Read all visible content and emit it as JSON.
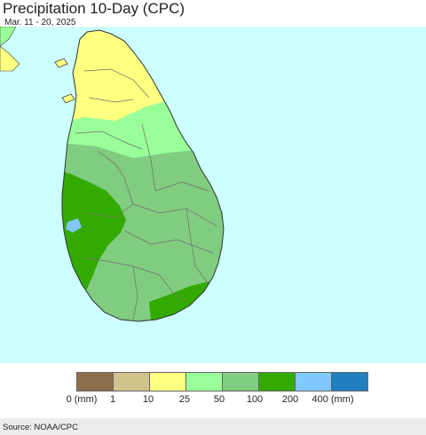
{
  "header": {
    "title": "Precipitation 10-Day (CPC)",
    "subtitle": "Mar. 11 - 20, 2025"
  },
  "map": {
    "region": "Sri Lanka",
    "ocean_color": "#ccffff",
    "land_zones": [
      {
        "name": "north",
        "category": "10-25",
        "color": "#ffff80"
      },
      {
        "name": "north-central",
        "category": "25-50",
        "color": "#99ff99"
      },
      {
        "name": "central-east",
        "category": "50-100",
        "color": "#80cc80"
      },
      {
        "name": "south-west",
        "category": "100-200",
        "color": "#33aa00"
      },
      {
        "name": "west-coast-spot",
        "category": "200-400",
        "color": "#80c8ff"
      },
      {
        "name": "south-coast",
        "category": "100-200",
        "color": "#33aa00"
      }
    ]
  },
  "legend": {
    "colors": [
      "#8b6e4b",
      "#d2c28c",
      "#ffff80",
      "#99ff99",
      "#80cc80",
      "#33aa00",
      "#80c8ff",
      "#1f7fbf"
    ],
    "ticks": [
      "0 (mm)",
      "1",
      "10",
      "25",
      "50",
      "100",
      "200",
      "400 (mm)"
    ]
  },
  "footer": {
    "source": "Source: NOAA/CPC"
  }
}
